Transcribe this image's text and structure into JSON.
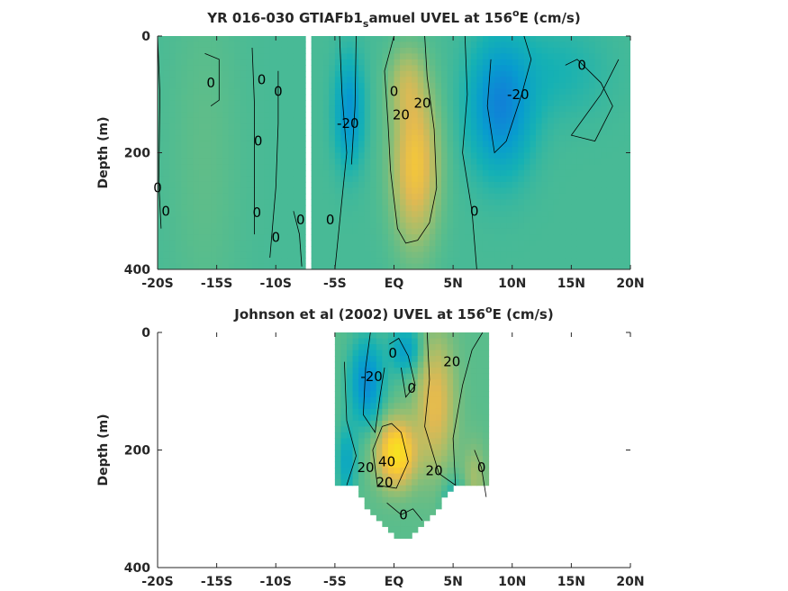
{
  "chart_data": [
    {
      "type": "heatmap",
      "subtype": "filled-contour",
      "title": "YR 016-030 GTIAFb1_samuel UVEL at 156°E (cm/s)",
      "title_parts": {
        "pre": "YR 016-030 GTIAFb1",
        "sub": "s",
        "mid": "amuel UVEL at 156",
        "sup": "o",
        "post": "E (cm/s)"
      },
      "ylabel": "Depth (m)",
      "xlim": [
        -20,
        20
      ],
      "ylim": [
        0,
        400
      ],
      "y_reversed": true,
      "x_ticks": [
        -20,
        -15,
        -10,
        -5,
        0,
        5,
        10,
        15,
        20
      ],
      "x_tick_labels": [
        "-20S",
        "-15S",
        "-10S",
        "-5S",
        "EQ",
        "5N",
        "10N",
        "15N",
        "20N"
      ],
      "y_ticks": [
        0,
        200,
        400
      ],
      "y_tick_labels": [
        "0",
        "200",
        "400"
      ],
      "colormap": "parula",
      "color_range_cm_s": [
        -60,
        60
      ],
      "data_gap_lon": [
        -7.7,
        -6.8
      ],
      "contour_labels": [
        {
          "text": "0",
          "lon": -15.5,
          "depth": 80
        },
        {
          "text": "0",
          "lon": -11.2,
          "depth": 75
        },
        {
          "text": "0",
          "lon": -9.8,
          "depth": 95
        },
        {
          "text": "0",
          "lon": -11.5,
          "depth": 180
        },
        {
          "text": "0",
          "lon": -20.0,
          "depth": 260
        },
        {
          "text": "0",
          "lon": -19.3,
          "depth": 300
        },
        {
          "text": "0",
          "lon": -11.6,
          "depth": 303
        },
        {
          "text": "0",
          "lon": -7.9,
          "depth": 315
        },
        {
          "text": "0",
          "lon": -10.0,
          "depth": 345
        },
        {
          "text": "0",
          "lon": -5.4,
          "depth": 315
        },
        {
          "text": "-20",
          "lon": -3.9,
          "depth": 150
        },
        {
          "text": "0",
          "lon": 0.0,
          "depth": 95
        },
        {
          "text": "20",
          "lon": 0.6,
          "depth": 135
        },
        {
          "text": "20",
          "lon": 2.4,
          "depth": 115
        },
        {
          "text": "0",
          "lon": 6.8,
          "depth": 300
        },
        {
          "text": "-20",
          "lon": 10.5,
          "depth": 100
        },
        {
          "text": "0",
          "lon": 15.9,
          "depth": 50
        }
      ],
      "features": [
        {
          "kind": "eastward core",
          "lon": 1.8,
          "depth": 220,
          "max_cm_s": 35
        },
        {
          "kind": "westward flow",
          "lon": 9.0,
          "depth": 120,
          "min_cm_s": -30
        },
        {
          "kind": "westward flow",
          "lon": -3.8,
          "depth": 130,
          "min_cm_s": -25
        }
      ]
    },
    {
      "type": "heatmap",
      "subtype": "filled-contour",
      "title": "Johnson et al (2002) UVEL at 156°E (cm/s)",
      "title_parts": {
        "pre": "Johnson et al (2002) UVEL at 156",
        "sup": "o",
        "post": "E (cm/s)"
      },
      "ylabel": "Depth (m)",
      "xlim": [
        -20,
        20
      ],
      "ylim": [
        0,
        400
      ],
      "y_reversed": true,
      "x_ticks": [
        -20,
        -15,
        -10,
        -5,
        0,
        5,
        10,
        15,
        20
      ],
      "x_tick_labels": [
        "-20S",
        "-15S",
        "-10S",
        "-5S",
        "EQ",
        "5N",
        "10N",
        "15N",
        "20N"
      ],
      "y_ticks": [
        0,
        200,
        400
      ],
      "y_tick_labels": [
        "0",
        "200",
        "400"
      ],
      "colormap": "parula",
      "color_range_cm_s": [
        -60,
        60
      ],
      "data_lon_range": [
        -4.8,
        8.0
      ],
      "contour_labels": [
        {
          "text": "0",
          "lon": -0.1,
          "depth": 35
        },
        {
          "text": "-20",
          "lon": -1.9,
          "depth": 75
        },
        {
          "text": "0",
          "lon": 1.5,
          "depth": 95
        },
        {
          "text": "20",
          "lon": 4.9,
          "depth": 50
        },
        {
          "text": "20",
          "lon": -2.4,
          "depth": 230
        },
        {
          "text": "40",
          "lon": -0.6,
          "depth": 220
        },
        {
          "text": "20",
          "lon": -0.8,
          "depth": 255
        },
        {
          "text": "20",
          "lon": 3.4,
          "depth": 235
        },
        {
          "text": "0",
          "lon": 7.4,
          "depth": 230
        },
        {
          "text": "0",
          "lon": 0.8,
          "depth": 310
        }
      ],
      "features": [
        {
          "kind": "eastward core",
          "lon": 0.2,
          "depth": 200,
          "max_cm_s": 45
        },
        {
          "kind": "westward flow",
          "lon": -2.3,
          "depth": 80,
          "min_cm_s": -30
        }
      ]
    }
  ]
}
